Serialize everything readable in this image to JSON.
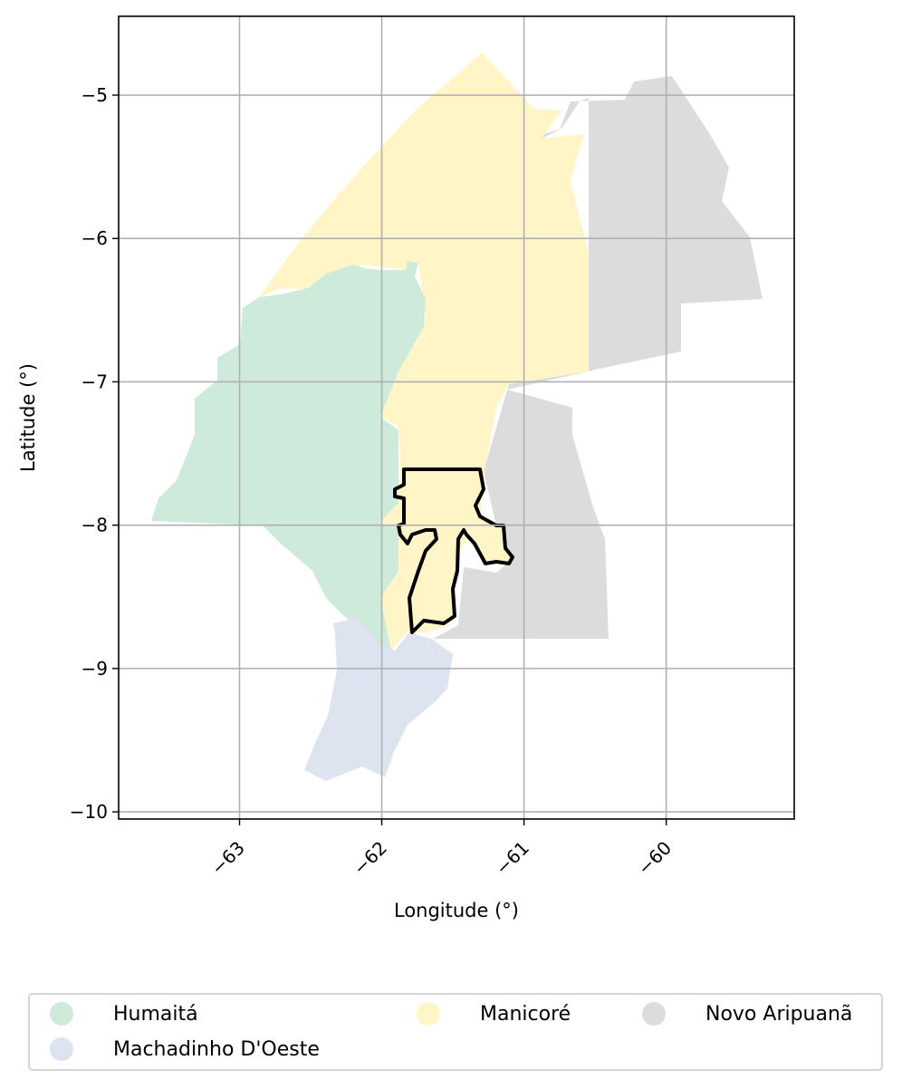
{
  "chart_data": {
    "type": "choropleth-map",
    "xlabel": "Longitude (°)",
    "ylabel": "Latitude (°)",
    "xlim": [
      -63.85,
      -59.1
    ],
    "ylim": [
      -10.05,
      -4.45
    ],
    "xticks": [
      -63,
      -62,
      -61,
      -60
    ],
    "yticks": [
      -5,
      -6,
      -7,
      -8,
      -9,
      -10
    ],
    "grid": true,
    "legend_placement": "bottom-center",
    "regions": [
      {
        "name": "Humaitá",
        "color": "#cdeadb"
      },
      {
        "name": "Machadinho D'Oeste",
        "color": "#dee3f0"
      },
      {
        "name": "Manicoré",
        "color": "#fff5c7"
      },
      {
        "name": "Novo Aripuanã",
        "color": "#dcdcdc"
      }
    ],
    "highlight": {
      "outline_color": "#000000",
      "fill_color": "#fff5c7"
    }
  },
  "legend": {
    "items": [
      {
        "label": "Humaitá",
        "color": "#cdeadb"
      },
      {
        "label": "Manicoré",
        "color": "#fff5c7"
      },
      {
        "label": "Novo Aripuanã",
        "color": "#dcdcdc"
      },
      {
        "label": "Machadinho D'Oeste",
        "color": "#dee3f0"
      }
    ]
  }
}
